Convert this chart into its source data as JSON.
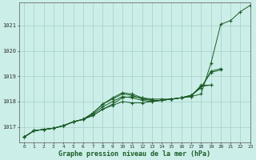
{
  "title": "Graphe pression niveau de la mer (hPa)",
  "bg_color": "#cceee8",
  "grid_color": "#aad4cc",
  "line_color": "#1a5c28",
  "xlim": [
    -0.5,
    23
  ],
  "ylim": [
    1016.4,
    1021.9
  ],
  "yticks": [
    1017,
    1018,
    1019,
    1020,
    1021
  ],
  "xticks": [
    0,
    1,
    2,
    3,
    4,
    5,
    6,
    7,
    8,
    9,
    10,
    11,
    12,
    13,
    14,
    15,
    16,
    17,
    18,
    19,
    20,
    21,
    22,
    23
  ],
  "series": [
    [
      1016.6,
      1016.85,
      1016.9,
      1016.95,
      1017.05,
      1017.2,
      1017.3,
      1017.45,
      1017.7,
      1017.85,
      1018.0,
      1017.95,
      1017.95,
      1018.0,
      1018.05,
      1018.1,
      1018.15,
      1018.2,
      1018.3,
      1019.5,
      1021.05,
      1021.2,
      1021.55,
      1021.8
    ],
    [
      1016.6,
      1016.85,
      1016.9,
      1016.95,
      1017.05,
      1017.2,
      1017.3,
      1017.45,
      1017.7,
      1017.9,
      1018.15,
      1018.2,
      1018.15,
      1018.1,
      1018.1,
      1018.1,
      1018.15,
      1018.2,
      1018.65,
      1018.65,
      null,
      null,
      null,
      null
    ],
    [
      1016.6,
      1016.85,
      1016.9,
      1016.95,
      1017.05,
      1017.2,
      1017.3,
      1017.5,
      1017.8,
      1018.0,
      1018.2,
      1018.15,
      1018.05,
      1018.0,
      1018.05,
      1018.1,
      1018.15,
      1018.25,
      1018.6,
      1018.65,
      null,
      null,
      null,
      null
    ],
    [
      1016.6,
      1016.85,
      1016.9,
      1016.95,
      1017.05,
      1017.2,
      1017.3,
      1017.55,
      1017.9,
      1018.1,
      1018.3,
      1018.25,
      1018.1,
      1018.05,
      1018.05,
      1018.1,
      1018.15,
      1018.25,
      1018.55,
      1019.2,
      1019.3,
      null,
      null,
      null
    ],
    [
      1016.6,
      1016.85,
      1016.9,
      1016.95,
      1017.05,
      1017.2,
      1017.3,
      1017.55,
      1017.9,
      1018.15,
      1018.35,
      1018.3,
      1018.15,
      1018.05,
      1018.05,
      1018.1,
      1018.15,
      1018.25,
      1018.55,
      1019.15,
      1019.25,
      null,
      null,
      null
    ]
  ],
  "marker": "+"
}
